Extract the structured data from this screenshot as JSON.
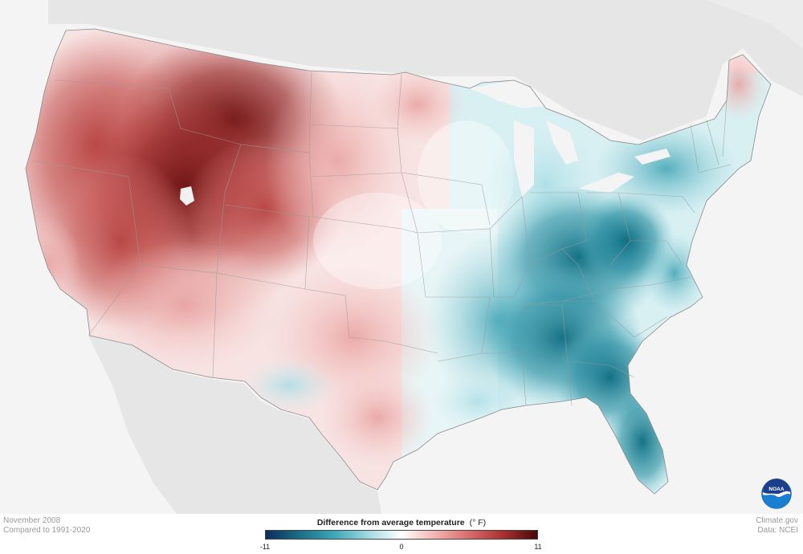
{
  "caption": {
    "date": "November 2008",
    "baseline": "Compared to 1991-2020"
  },
  "credits": {
    "site": "Climate.gov",
    "source": "Data: NCEI"
  },
  "legend": {
    "title": "Difference from average temperature",
    "unit": "(° F)",
    "min_label": "-11",
    "mid_label": "0",
    "max_label": "11",
    "min_value": -11,
    "max_value": 11,
    "colors": [
      "#0c2c5e",
      "#1a6f86",
      "#3aa6b8",
      "#9fd9e0",
      "#ffffff",
      "#f2b3b0",
      "#d86b6a",
      "#a8302f",
      "#4a0707"
    ]
  },
  "logo": {
    "icon": "noaa-logo-icon",
    "text": "NOAA"
  },
  "map": {
    "region": "contiguous United States",
    "anomalies": {
      "northwest": "warm",
      "northern_rockies": "strong warm",
      "great_basin": "warm",
      "northern_plains": "slight warm",
      "texas": "near average",
      "great_lakes": "slight cool",
      "ohio_valley": "cool",
      "southeast": "strong cool",
      "florida": "strongest cool",
      "new_england": "near average"
    }
  }
}
